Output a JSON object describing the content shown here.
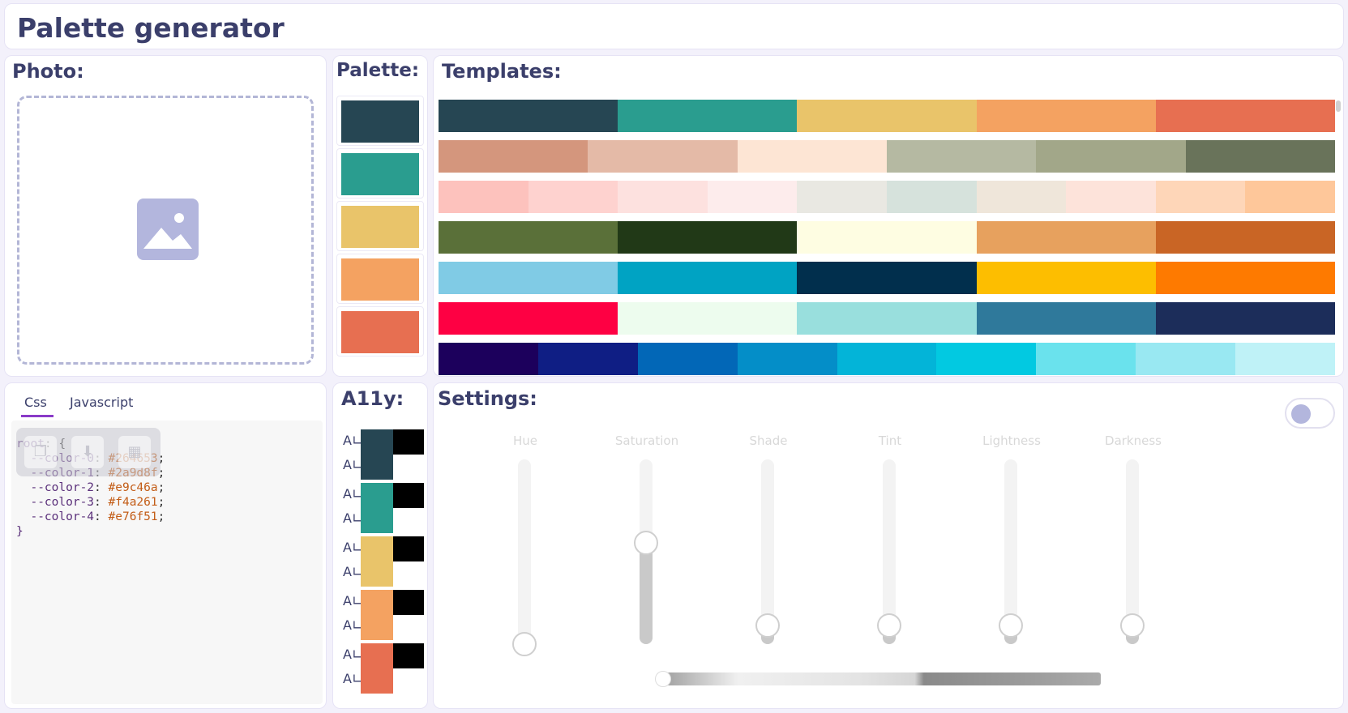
{
  "header": {
    "title": "Palette generator"
  },
  "photo": {
    "title": "Photo:",
    "icon": "image-icon"
  },
  "palette": {
    "title": "Palette:",
    "colors": [
      "#264653",
      "#2a9d8f",
      "#e9c46a",
      "#f4a261",
      "#e76f51"
    ]
  },
  "templates": {
    "title": "Templates:",
    "rows": [
      [
        "#264653",
        "#2a9d8f",
        "#e9c46a",
        "#f4a261",
        "#e76f51"
      ],
      [
        "#d4967d",
        "#e4baa7",
        "#fde5d4",
        "#b5b9a2",
        "#a2a789",
        "#69735a"
      ],
      [
        "#fdc2bd",
        "#fed2cf",
        "#fde1df",
        "#fdecec",
        "#e9e8e2",
        "#d6e2dc",
        "#efe6da",
        "#fde3da",
        "#fed6b8",
        "#fec79a"
      ],
      [
        "#5a7039",
        "#213917",
        "#fefde2",
        "#e7a15e",
        "#c96525"
      ],
      [
        "#80cbe5",
        "#00a3c3",
        "#012f4d",
        "#fdbe00",
        "#fe7a00"
      ],
      [
        "#fe0043",
        "#edfcee",
        "#99dfdd",
        "#2f799b",
        "#1c2d5a"
      ],
      [
        "#1c005c",
        "#0f1e84",
        "#0267b7",
        "#048ec8",
        "#03b4d8",
        "#02c9e1",
        "#6ae2ed",
        "#99e8f2",
        "#bff2f7"
      ]
    ]
  },
  "code": {
    "tabs": [
      "Css",
      "Javascript"
    ],
    "lines": [
      {
        "prop": "root",
        "sep": ": {",
        "value": ""
      },
      {
        "prop": "  --color-0",
        "sep": ": ",
        "value": "#264653",
        "end": ";"
      },
      {
        "prop": "  --color-1",
        "sep": ": ",
        "value": "#2a9d8f",
        "end": ";"
      },
      {
        "prop": "  --color-2",
        "sep": ": ",
        "value": "#e9c46a",
        "end": ";"
      },
      {
        "prop": "  --color-3",
        "sep": ": ",
        "value": "#f4a261",
        "end": ";"
      },
      {
        "prop": "  --color-4",
        "sep": ": ",
        "value": "#e76f51",
        "end": ";"
      },
      {
        "prop": "}",
        "sep": "",
        "value": ""
      }
    ],
    "toolbar_icons": [
      "copy-icon",
      "download-icon",
      "grid-icon"
    ]
  },
  "a11y": {
    "title": "A11y:",
    "icon": "contrast-check-icon",
    "colors": [
      "#264653",
      "#2a9d8f",
      "#e9c46a",
      "#f4a261",
      "#e76f51"
    ]
  },
  "settings": {
    "title": "Settings:",
    "toggle_on": false,
    "sliders": [
      {
        "label": "Hue",
        "value": 0
      },
      {
        "label": "Saturation",
        "value": 0.55
      },
      {
        "label": "Shade",
        "value": 0.1
      },
      {
        "label": "Tint",
        "value": 0.1
      },
      {
        "label": "Lightness",
        "value": 0.1
      },
      {
        "label": "Darkness",
        "value": 0.1
      }
    ]
  }
}
